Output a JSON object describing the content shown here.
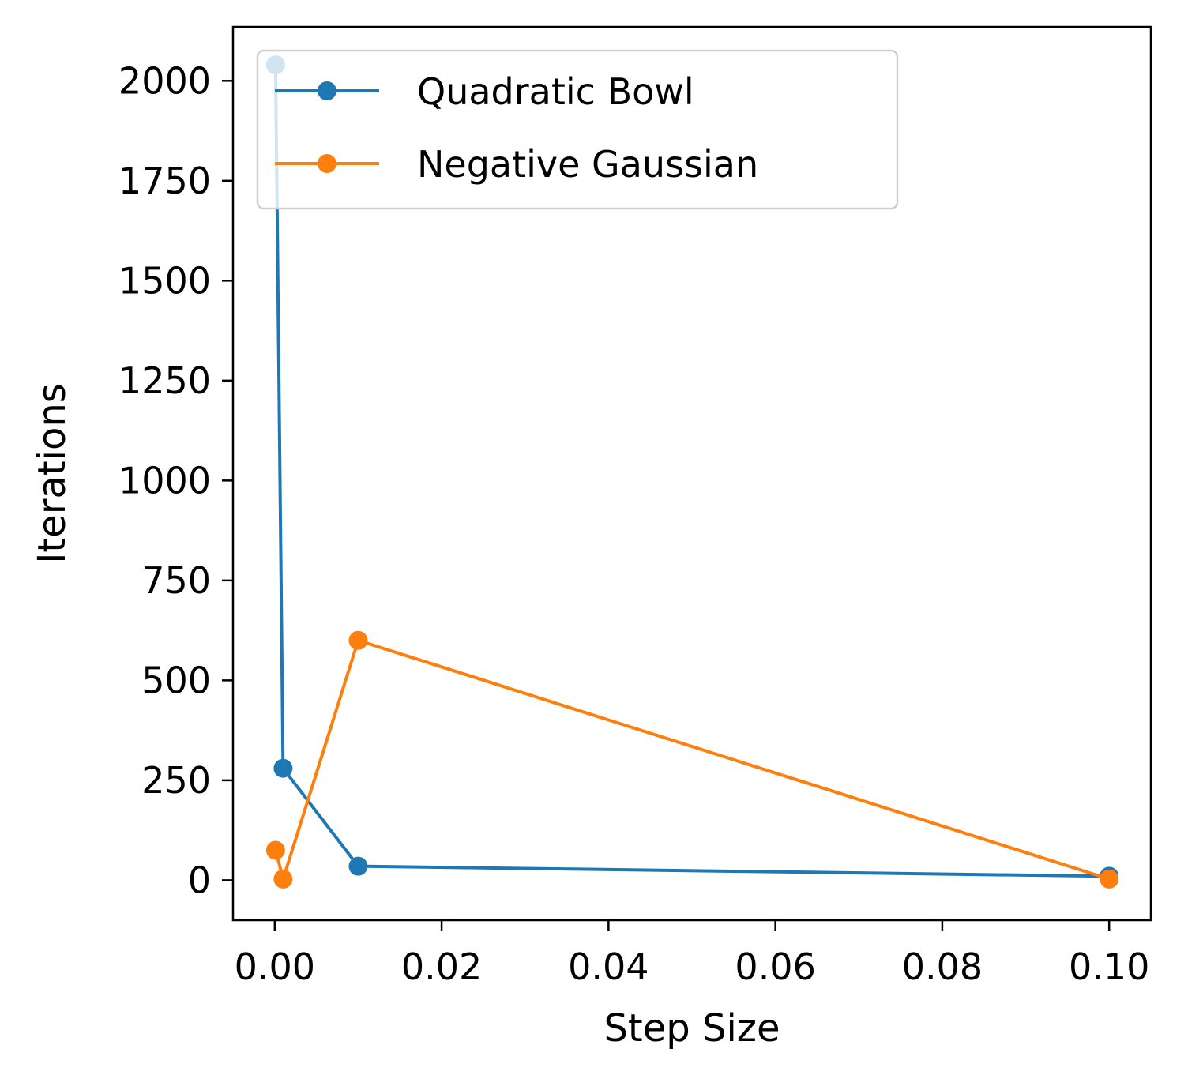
{
  "chart_data": {
    "type": "line",
    "title": "",
    "xlabel": "Step Size",
    "ylabel": "Iterations",
    "xlim": [
      -0.005,
      0.105
    ],
    "ylim": [
      -100,
      2135
    ],
    "xticks": [
      0.0,
      0.02,
      0.04,
      0.06,
      0.08,
      0.1
    ],
    "xtick_labels": [
      "0.00",
      "0.02",
      "0.04",
      "0.06",
      "0.08",
      "0.10"
    ],
    "yticks": [
      0,
      250,
      500,
      750,
      1000,
      1250,
      1500,
      1750,
      2000
    ],
    "ytick_labels": [
      "0",
      "250",
      "500",
      "750",
      "1000",
      "1250",
      "1500",
      "1750",
      "2000"
    ],
    "grid": false,
    "legend_position": "upper-left",
    "series": [
      {
        "name": "Quadratic Bowl",
        "color": "#1f77b4",
        "marker": "circle",
        "x": [
          0.0001,
          0.001,
          0.01,
          0.1
        ],
        "y": [
          2040,
          280,
          35,
          10
        ]
      },
      {
        "name": "Negative Gaussian",
        "color": "#ff7f0e",
        "marker": "circle",
        "x": [
          0.0001,
          0.001,
          0.01,
          0.1
        ],
        "y": [
          75,
          3,
          600,
          3
        ]
      }
    ]
  }
}
